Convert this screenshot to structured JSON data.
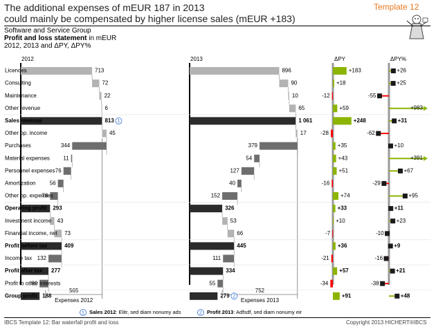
{
  "header": {
    "title_line1": "The additional expenses of mEUR 187 in 2013",
    "title_line2": "could mainly be compensated by higher license sales (mEUR +183)",
    "template_label": "Template 12"
  },
  "meta": {
    "entity": "Software and Service Group",
    "measure_bold": "Profit and loss statement",
    "measure_unit": " in mEUR",
    "time": "2012, 2013 and ΔPY, ΔPY%"
  },
  "footer": {
    "left": "IBCS Template 12: Bar waterfall profit and loss",
    "right": "Copyright 2013 HICHERT®IBCS"
  },
  "colors": {
    "result": "#2b2b2b",
    "light_bar": "#b3b3b3",
    "dark_bar": "#6e6e6e",
    "positive": "#8cb400",
    "negative": "#ff0000",
    "axis": "#9a9a9a",
    "template": "#e8771e",
    "note": "#2f6fd0"
  },
  "chart_data": {
    "type": "bar",
    "title": "",
    "categories": [
      "Licences",
      "Consulting",
      "Maintenance",
      "Other revenue",
      "Sales revenue",
      "Other op. income",
      "Purchases",
      "Material expenses",
      "Personnel expenses",
      "Amortization",
      "Other op. expenses",
      "Operating profit",
      "Investment  income",
      "Financial income, net",
      "Profit before tax",
      "Income tax",
      "Profit after tax",
      "Profit to other interests",
      "Group profit"
    ],
    "bold_rows": [
      4,
      11,
      14,
      16,
      18
    ],
    "series": [
      {
        "name": "2012",
        "values": [
          713,
          72,
          22,
          6,
          813,
          45,
          344,
          11,
          76,
          56,
          78,
          293,
          43,
          73,
          409,
          132,
          277,
          89,
          188
        ],
        "labels": [
          "713",
          "72",
          "22",
          "6",
          "813",
          "45",
          "344",
          "11",
          "76",
          "56",
          "78",
          "293",
          "43",
          "73",
          "409",
          "132",
          "277",
          "89",
          "188"
        ]
      },
      {
        "name": "2013",
        "values": [
          896,
          90,
          10,
          65,
          1061,
          17,
          379,
          54,
          127,
          40,
          152,
          326,
          53,
          66,
          445,
          111,
          334,
          55,
          279
        ],
        "labels": [
          "896",
          "90",
          "10",
          "65",
          "1 061",
          "17",
          "379",
          "54",
          "127",
          "40",
          "152",
          "326",
          "53",
          "66",
          "445",
          "111",
          "334",
          "55",
          "279"
        ]
      },
      {
        "name": "ΔPY",
        "values": [
          183,
          18,
          -12,
          59,
          248,
          -28,
          35,
          43,
          51,
          -16,
          74,
          33,
          10,
          -7,
          36,
          -21,
          57,
          -34,
          91
        ],
        "labels": [
          "+183",
          "+18",
          "-12",
          "+59",
          "+248",
          "-28",
          "+35",
          "+43",
          "+51",
          "-16",
          "+74",
          "+33",
          "+10",
          "-7",
          "+36",
          "-21",
          "+57",
          "-34",
          "+91"
        ]
      },
      {
        "name": "ΔPY%",
        "values": [
          26,
          25,
          -55,
          983,
          31,
          -62,
          10,
          391,
          67,
          -29,
          95,
          11,
          23,
          -10,
          9,
          -16,
          21,
          -38,
          48
        ],
        "labels": [
          "+26",
          "+25",
          "-55",
          "+983",
          "+31",
          "-62",
          "+10",
          "+391",
          "+67",
          "-29",
          "+95",
          "+11",
          "+23",
          "-10",
          "+9",
          "-16",
          "+21",
          "-38",
          "+48"
        ]
      }
    ],
    "expenses": [
      {
        "caption": "Expenses 2012",
        "value": "565"
      },
      {
        "caption": "Expenses 2013",
        "value": "752"
      }
    ],
    "notes": [
      {
        "num": "1",
        "bold": "Sales 2012",
        "text": ": Elitr, sed diam nonumy  ads"
      },
      {
        "num": "2",
        "bold": "Profit 2013",
        "text": ": Adfsdf, sed diam nonumy eir"
      }
    ]
  }
}
